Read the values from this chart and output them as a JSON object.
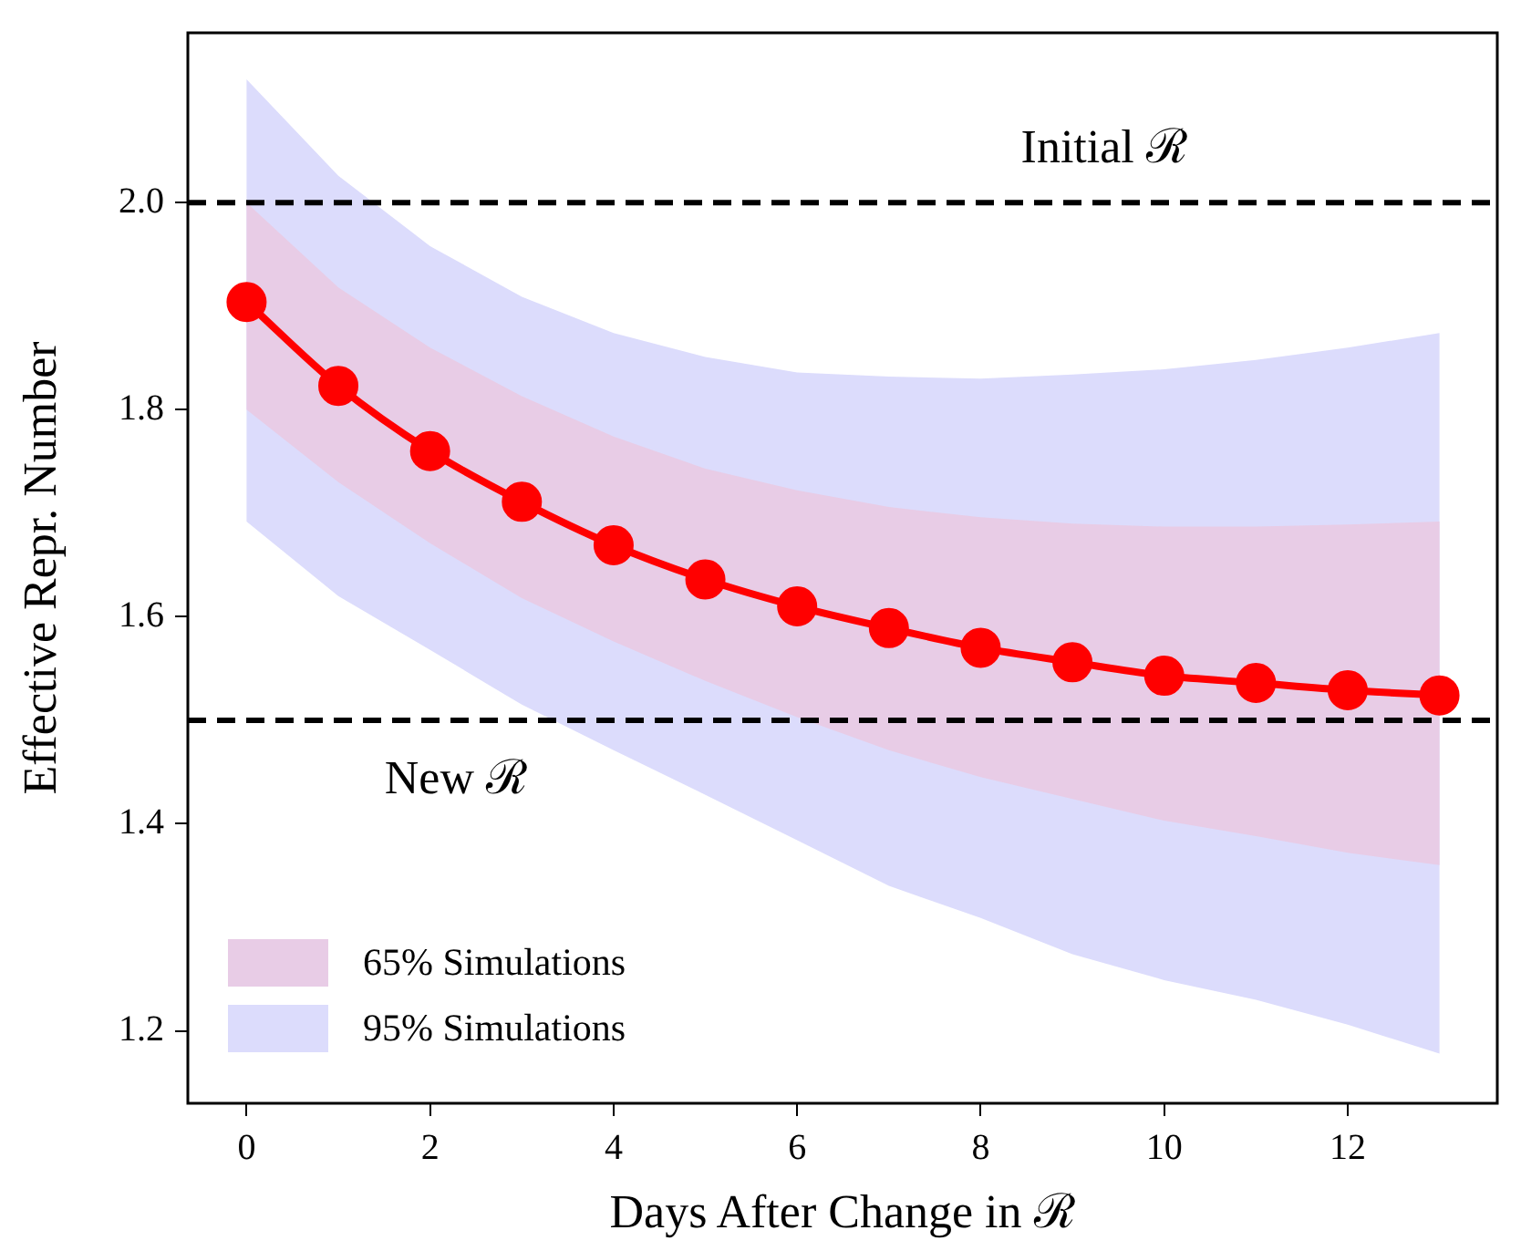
{
  "chart_data": {
    "type": "line",
    "xlabel": "Days After Change in ℛ",
    "ylabel": "Effective Repr. Number",
    "x": [
      0,
      1,
      2,
      3,
      4,
      5,
      6,
      7,
      8,
      9,
      10,
      11,
      12,
      13
    ],
    "series": [
      {
        "name": "95% Simulations",
        "type": "area",
        "color": "#dcdcfc",
        "values": [
          null,
          null,
          null,
          null,
          null,
          null,
          null,
          null,
          null,
          null,
          null,
          null,
          null,
          null
        ],
        "lower": [
          1.692,
          1.62,
          1.568,
          1.515,
          1.471,
          1.428,
          1.384,
          1.34,
          1.309,
          1.274,
          1.249,
          1.23,
          1.206,
          1.178
        ],
        "upper": [
          2.119,
          2.026,
          1.958,
          1.909,
          1.874,
          1.851,
          1.836,
          1.832,
          1.83,
          1.834,
          1.839,
          1.848,
          1.86,
          1.874
        ]
      },
      {
        "name": "65% Simulations",
        "type": "area",
        "color": "#e8cce6",
        "values": [
          null,
          null,
          null,
          null,
          null,
          null,
          null,
          null,
          null,
          null,
          null,
          null,
          null,
          null
        ],
        "lower": [
          1.8,
          1.73,
          1.671,
          1.618,
          1.576,
          1.538,
          1.503,
          1.471,
          1.445,
          1.424,
          1.403,
          1.388,
          1.372,
          1.36
        ],
        "upper": [
          2.0,
          1.918,
          1.86,
          1.813,
          1.774,
          1.743,
          1.722,
          1.706,
          1.696,
          1.69,
          1.687,
          1.687,
          1.689,
          1.692
        ]
      },
      {
        "type": "line",
        "color": "#ff0000",
        "marker": "circle",
        "values": [
          1.904,
          1.823,
          1.76,
          1.711,
          1.669,
          1.636,
          1.61,
          1.589,
          1.57,
          1.556,
          1.543,
          1.536,
          1.529,
          1.524
        ]
      }
    ],
    "ref_lines": [
      {
        "axis": "y",
        "value": 2.0,
        "label": "Initial ℛ",
        "color": "#000000",
        "line_style": "dashed"
      },
      {
        "axis": "y",
        "value": 1.5,
        "label": "New ℛ",
        "color": "#000000",
        "line_style": "dashed"
      }
    ],
    "legend": "bottom left",
    "grid": false,
    "xlim": [
      -0.64,
      13.63
    ],
    "ylim": [
      1.13,
      2.164
    ],
    "xticks": [
      0,
      2,
      4,
      6,
      8,
      10,
      12
    ],
    "yticks": [
      {
        "value": 1.2,
        "label": "1.2"
      },
      {
        "value": 1.4,
        "label": "1.4"
      },
      {
        "value": 1.6,
        "label": "1.6"
      },
      {
        "value": 1.8,
        "label": "1.8"
      },
      {
        "value": 2,
        "label": "2.0"
      }
    ]
  }
}
